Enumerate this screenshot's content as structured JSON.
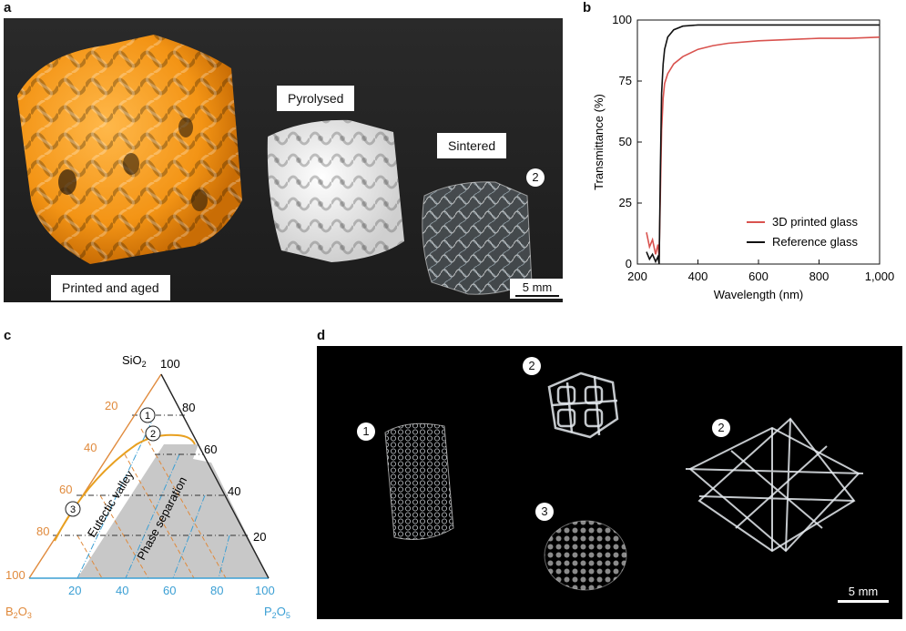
{
  "panels": {
    "a": {
      "letter": "a",
      "labels": {
        "printed": "Printed and aged",
        "pyrolysed": "Pyrolysed",
        "sintered": "Sintered"
      },
      "marker": "2",
      "scale_bar": "5 mm"
    },
    "b": {
      "letter": "b"
    },
    "c": {
      "letter": "c",
      "apex_top": "SiO",
      "apex_top_sub": "2",
      "corner_left": "B",
      "corner_left_sub": "2",
      "corner_left_tail": "O",
      "corner_left_sub2": "3",
      "corner_right": "P",
      "corner_right_sub": "2",
      "corner_right_tail": "O",
      "corner_right_sub2": "5",
      "right_ticks": [
        "100",
        "80",
        "60",
        "40",
        "20"
      ],
      "left_ticks": [
        "20",
        "40",
        "60",
        "80",
        "100"
      ],
      "bottom_ticks": [
        "20",
        "40",
        "60",
        "80",
        "100"
      ],
      "region_eutectic": "Eutectic valley",
      "region_phase": "Phase separation",
      "markers": [
        "1",
        "2",
        "3"
      ],
      "colors": {
        "b2o3": "#e08a3c",
        "p2o5": "#3b9fd4",
        "gray_region": "#c8c8c8",
        "eutectic_line": "#e8a020"
      }
    },
    "d": {
      "letter": "d",
      "markers": [
        "1",
        "2",
        "2",
        "3"
      ],
      "scale_bar": "5 mm"
    }
  },
  "chart_data": {
    "type": "line",
    "xlabel": "Wavelength (nm)",
    "ylabel": "Transmittance (%)",
    "xlim": [
      200,
      1000
    ],
    "ylim": [
      0,
      100
    ],
    "xticks": [
      "200",
      "400",
      "600",
      "800",
      "1,000"
    ],
    "yticks": [
      "0",
      "25",
      "50",
      "75",
      "100"
    ],
    "legend_position": "bottom-right",
    "series": [
      {
        "name": "3D printed glass",
        "color": "#d9534f",
        "x": [
          230,
          240,
          250,
          260,
          268,
          272,
          276,
          280,
          285,
          290,
          300,
          320,
          350,
          400,
          450,
          500,
          600,
          700,
          800,
          900,
          1000
        ],
        "y": [
          13,
          7,
          10,
          4,
          8,
          3,
          30,
          55,
          68,
          74,
          78,
          82,
          85,
          88,
          89.5,
          90.5,
          91.5,
          92,
          92.5,
          92.5,
          93
        ]
      },
      {
        "name": "Reference glass",
        "color": "#111111",
        "x": [
          230,
          240,
          250,
          260,
          268,
          272,
          276,
          280,
          285,
          290,
          300,
          320,
          350,
          400,
          500,
          600,
          800,
          1000
        ],
        "y": [
          5,
          2,
          4,
          1,
          3,
          0,
          40,
          70,
          82,
          88,
          93,
          96,
          97.5,
          98,
          98,
          98,
          98,
          98
        ]
      }
    ]
  }
}
